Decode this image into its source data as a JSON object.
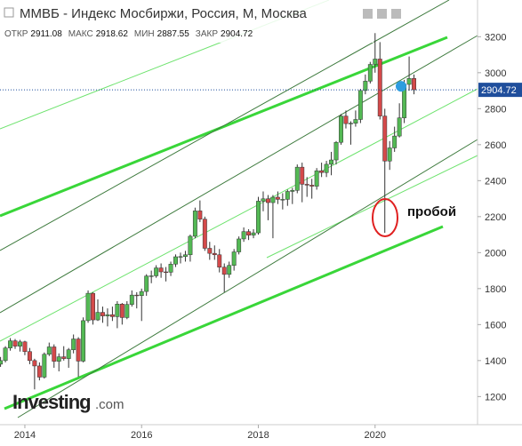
{
  "chart_data": {
    "type": "candlestick",
    "title": "ММВБ - Индекс Мосбиржи, Россия, М, Москва",
    "ohlc_header": [
      {
        "label": "ОТКР",
        "value": 2911.08
      },
      {
        "label": "МАКС",
        "value": 2918.62
      },
      {
        "label": "МИН",
        "value": 2887.55
      },
      {
        "label": "ЗАКР",
        "value": 2904.72
      }
    ],
    "last_price": 2904.72,
    "annotation": "пробой",
    "watermark": [
      "Investing",
      ".com"
    ],
    "up_color": "#53b954",
    "down_color": "#d4494a",
    "ylim": [
      1100,
      3330
    ],
    "yticks": [
      1200,
      1400,
      1600,
      1800,
      2000,
      2200,
      2400,
      2600,
      2800,
      3000,
      3200
    ],
    "grid": false,
    "categories": [
      null,
      null,
      null,
      null,
      null,
      "2014",
      null,
      null,
      null,
      null,
      null,
      null,
      null,
      null,
      null,
      null,
      null,
      null,
      null,
      null,
      null,
      null,
      null,
      null,
      null,
      null,
      null,
      null,
      null,
      "2016",
      null,
      null,
      null,
      null,
      null,
      null,
      null,
      null,
      null,
      null,
      null,
      null,
      null,
      null,
      null,
      null,
      null,
      null,
      null,
      null,
      null,
      null,
      null,
      "2018",
      null,
      null,
      null,
      null,
      null,
      null,
      null,
      null,
      null,
      null,
      null,
      null,
      null,
      null,
      null,
      null,
      null,
      null,
      null,
      null,
      null,
      null,
      null,
      "2020",
      null,
      null,
      null,
      null,
      null,
      null,
      null,
      null
    ],
    "ohlc": [
      [
        1380,
        1420,
        1365,
        1400
      ],
      [
        1400,
        1480,
        1390,
        1470
      ],
      [
        1470,
        1525,
        1455,
        1510
      ],
      [
        1510,
        1520,
        1465,
        1480
      ],
      [
        1480,
        1515,
        1450,
        1504
      ],
      [
        1504,
        1510,
        1430,
        1450
      ],
      [
        1450,
        1470,
        1380,
        1400
      ],
      [
        1400,
        1410,
        1240,
        1370
      ],
      [
        1370,
        1390,
        1290,
        1308
      ],
      [
        1308,
        1445,
        1300,
        1435
      ],
      [
        1435,
        1500,
        1425,
        1476
      ],
      [
        1476,
        1490,
        1360,
        1396
      ],
      [
        1396,
        1440,
        1340,
        1421
      ],
      [
        1421,
        1480,
        1400,
        1411
      ],
      [
        1411,
        1470,
        1360,
        1460
      ],
      [
        1460,
        1545,
        1440,
        1520
      ],
      [
        1520,
        1530,
        1310,
        1397
      ],
      [
        1397,
        1640,
        1390,
        1622
      ],
      [
        1622,
        1790,
        1610,
        1774
      ],
      [
        1774,
        1780,
        1600,
        1626
      ],
      [
        1626,
        1740,
        1620,
        1668
      ],
      [
        1668,
        1700,
        1610,
        1648
      ],
      [
        1648,
        1690,
        1590,
        1655
      ],
      [
        1655,
        1700,
        1620,
        1644
      ],
      [
        1644,
        1730,
        1580,
        1714
      ],
      [
        1714,
        1720,
        1600,
        1639
      ],
      [
        1639,
        1730,
        1630,
        1712
      ],
      [
        1712,
        1790,
        1700,
        1764
      ],
      [
        1764,
        1780,
        1690,
        1761
      ],
      [
        1761,
        1800,
        1620,
        1784
      ],
      [
        1784,
        1880,
        1760,
        1870
      ],
      [
        1870,
        1900,
        1830,
        1871
      ],
      [
        1871,
        1930,
        1860,
        1915
      ],
      [
        1915,
        1940,
        1860,
        1893
      ],
      [
        1893,
        1920,
        1840,
        1891
      ],
      [
        1891,
        1950,
        1870,
        1936
      ],
      [
        1936,
        1990,
        1920,
        1977
      ],
      [
        1977,
        2000,
        1940,
        1978
      ],
      [
        1978,
        2010,
        1950,
        1988
      ],
      [
        1988,
        2100,
        1950,
        2091
      ],
      [
        2091,
        2250,
        2080,
        2232
      ],
      [
        2232,
        2290,
        2170,
        2186
      ],
      [
        2186,
        2200,
        2010,
        2024
      ],
      [
        2024,
        2060,
        1960,
        1996
      ],
      [
        1996,
        2040,
        1960,
        1988
      ],
      [
        1988,
        2020,
        1890,
        1919
      ],
      [
        1919,
        1940,
        1780,
        1879
      ],
      [
        1879,
        1950,
        1860,
        1929
      ],
      [
        1929,
        2020,
        1900,
        2004
      ],
      [
        2004,
        2090,
        1990,
        2076
      ],
      [
        2076,
        2140,
        2060,
        2117
      ],
      [
        2117,
        2130,
        2070,
        2097
      ],
      [
        2097,
        2130,
        2080,
        2110
      ],
      [
        2110,
        2310,
        2100,
        2286
      ],
      [
        2286,
        2340,
        2230,
        2299
      ],
      [
        2299,
        2320,
        2180,
        2278
      ],
      [
        2278,
        2320,
        2080,
        2308
      ],
      [
        2308,
        2340,
        2270,
        2296
      ],
      [
        2296,
        2330,
        2240,
        2296
      ],
      [
        2296,
        2350,
        2260,
        2340
      ],
      [
        2340,
        2360,
        2270,
        2346
      ],
      [
        2346,
        2490,
        2330,
        2475
      ],
      [
        2475,
        2500,
        2280,
        2380
      ],
      [
        2380,
        2420,
        2310,
        2375
      ],
      [
        2375,
        2410,
        2300,
        2369
      ],
      [
        2369,
        2470,
        2350,
        2455
      ],
      [
        2455,
        2500,
        2420,
        2445
      ],
      [
        2445,
        2510,
        2420,
        2491
      ],
      [
        2491,
        2560,
        2430,
        2515
      ],
      [
        2515,
        2620,
        2490,
        2613
      ],
      [
        2613,
        2770,
        2600,
        2759
      ],
      [
        2759,
        2790,
        2690,
        2717
      ],
      [
        2717,
        2730,
        2600,
        2719
      ],
      [
        2719,
        2790,
        2700,
        2740
      ],
      [
        2740,
        2910,
        2720,
        2901
      ],
      [
        2901,
        2990,
        2880,
        2953
      ],
      [
        2953,
        3060,
        2940,
        3046
      ],
      [
        3046,
        3220,
        3000,
        3076
      ],
      [
        3076,
        3170,
        2740,
        2759
      ],
      [
        2759,
        2800,
        2110,
        2509
      ],
      [
        2509,
        2620,
        2460,
        2582
      ],
      [
        2582,
        2700,
        2560,
        2648
      ],
      [
        2648,
        2830,
        2640,
        2749
      ],
      [
        2749,
        2960,
        2720,
        2935
      ],
      [
        2935,
        3090,
        2900,
        2968
      ],
      [
        2968,
        2990,
        2880,
        2904.72
      ]
    ]
  }
}
